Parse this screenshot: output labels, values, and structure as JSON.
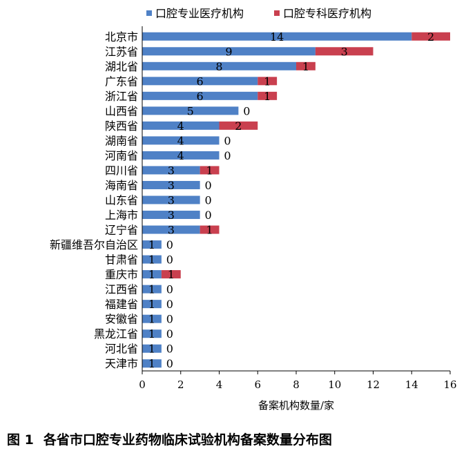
{
  "chart_data": {
    "type": "bar",
    "orientation": "horizontal",
    "stacked": true,
    "categories": [
      "北京市",
      "江苏省",
      "湖北省",
      "广东省",
      "浙江省",
      "山西省",
      "陕西省",
      "湖南省",
      "河南省",
      "四川省",
      "海南省",
      "山东省",
      "上海市",
      "辽宁省",
      "新疆维吾尔自治区",
      "甘肃省",
      "重庆市",
      "江西省",
      "福建省",
      "安徽省",
      "黑龙江省",
      "河北省",
      "天津市"
    ],
    "series": [
      {
        "name": "口腔专业医疗机构",
        "color": "#4f81c6",
        "values": [
          14,
          9,
          8,
          6,
          6,
          5,
          4,
          4,
          4,
          3,
          3,
          3,
          3,
          3,
          1,
          1,
          1,
          1,
          1,
          1,
          1,
          1,
          1
        ]
      },
      {
        "name": "口腔专科医疗机构",
        "color": "#c9404f",
        "values": [
          2,
          3,
          1,
          1,
          1,
          0,
          2,
          0,
          0,
          1,
          0,
          0,
          0,
          1,
          0,
          0,
          1,
          0,
          0,
          0,
          0,
          0,
          0
        ]
      }
    ],
    "xlabel": "备案机构数量/家",
    "ylabel": "",
    "xlim": [
      0,
      16
    ],
    "xticks": [
      0,
      2,
      4,
      6,
      8,
      10,
      12,
      14,
      16
    ],
    "grid": false,
    "legend": "top"
  },
  "caption": {
    "number": "图 1",
    "text": "各省市口腔专业药物临床试验机构备案数量分布图"
  }
}
